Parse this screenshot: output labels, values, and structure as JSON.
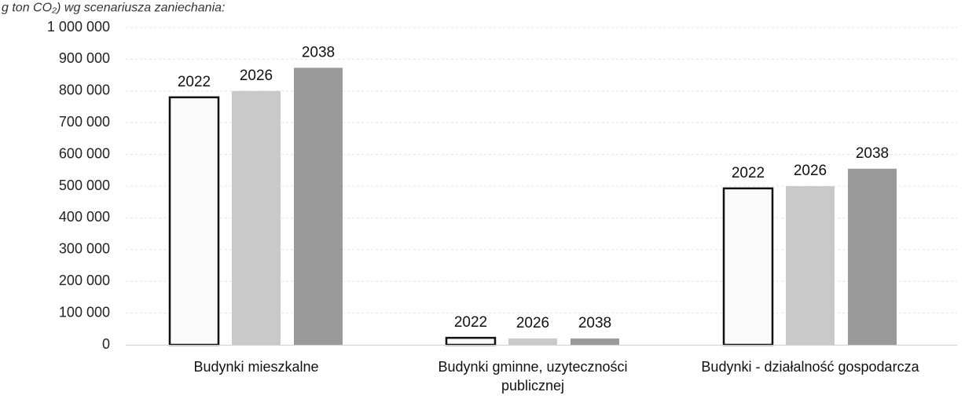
{
  "caption": "g ton CO₂) wg scenariusza zaniechania:",
  "chart_data": {
    "type": "bar",
    "categories": [
      [
        "Budynki mieszkalne"
      ],
      [
        "Budynki gminne, uzyteczności",
        "publicznej"
      ],
      [
        "Budynki - działalność gospodarcza"
      ]
    ],
    "series": [
      {
        "values": [
          780000,
          22000,
          493000
        ],
        "color": "#fafafa",
        "outline": "#111111"
      },
      {
        "values": [
          800000,
          20000,
          500000
        ],
        "color": "#c9c9c9",
        "outline": ""
      },
      {
        "values": [
          873000,
          20000,
          555000
        ],
        "color": "#9a9a9a",
        "outline": ""
      }
    ],
    "data_labels": [
      "2022",
      "2026",
      "2038"
    ],
    "ylim": [
      0,
      1000000
    ],
    "yticks": [
      0,
      100000,
      200000,
      300000,
      400000,
      500000,
      600000,
      700000,
      800000,
      900000,
      1000000
    ],
    "ytick_labels": [
      "0",
      "100 000",
      "200 000",
      "300 000",
      "400 000",
      "500 000",
      "600 000",
      "700 000",
      "800 000",
      "900 000",
      "1 000 000"
    ],
    "grid": true,
    "legend": false
  }
}
